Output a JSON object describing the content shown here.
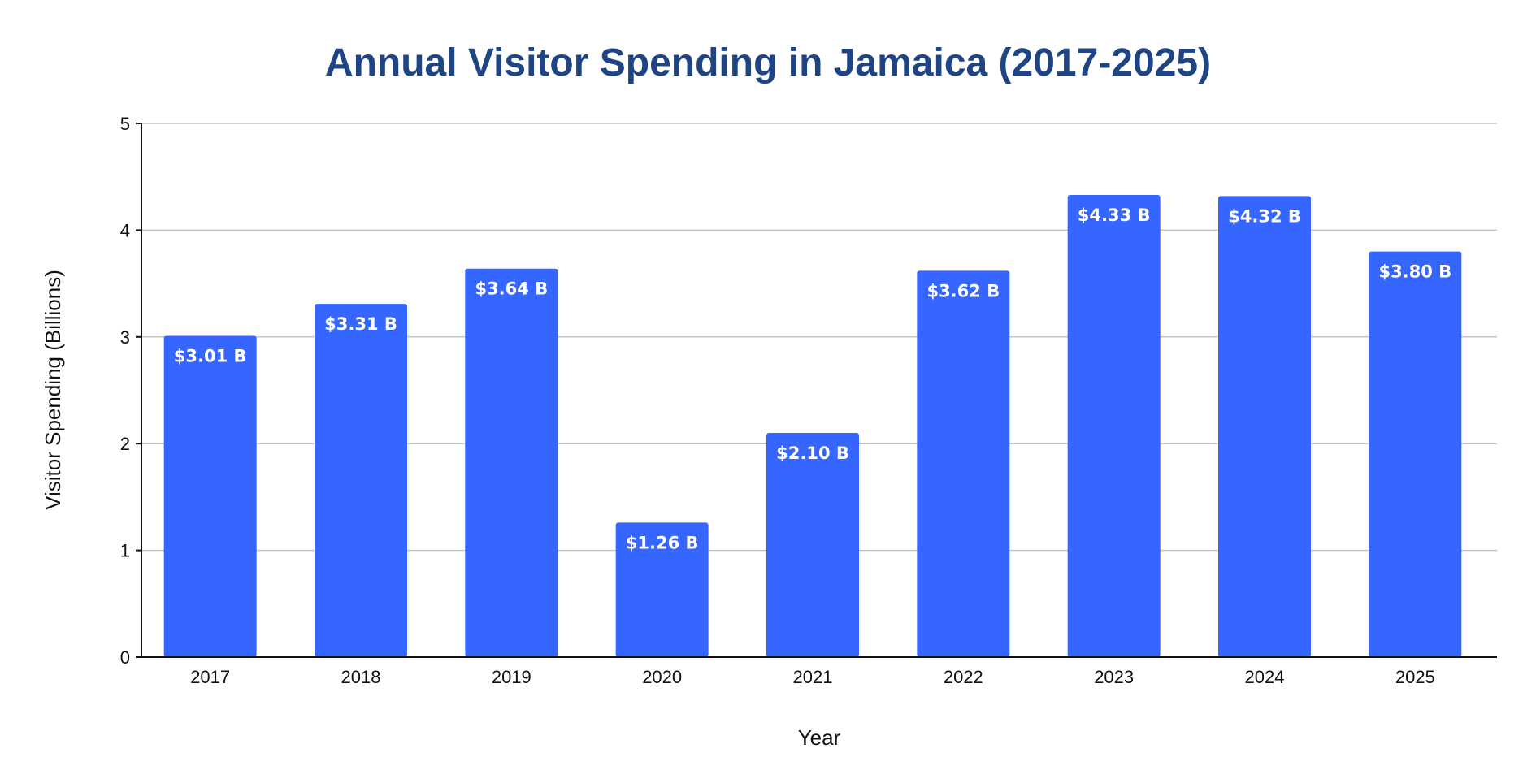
{
  "chart_data": {
    "type": "bar",
    "title": "Annual Visitor Spending in Jamaica (2017-2025)",
    "xlabel": "Year",
    "ylabel": "Visitor Spending (Billions)",
    "categories": [
      "2017",
      "2018",
      "2019",
      "2020",
      "2021",
      "2022",
      "2023",
      "2024",
      "2025"
    ],
    "values": [
      3.01,
      3.31,
      3.64,
      1.26,
      2.1,
      3.62,
      4.33,
      4.32,
      3.8
    ],
    "data_labels": [
      "$3.01 B",
      "$3.31 B",
      "$3.64 B",
      "$1.26 B",
      "$2.10 B",
      "$3.62 B",
      "$4.33 B",
      "$4.32 B",
      "$3.80 B"
    ],
    "ylim": [
      0,
      5
    ],
    "yticks": [
      "0",
      "1",
      "2",
      "3",
      "4",
      "5"
    ],
    "grid": true,
    "legend": "none",
    "bar_color": "#3566ff",
    "title_color": "#1f4483"
  }
}
